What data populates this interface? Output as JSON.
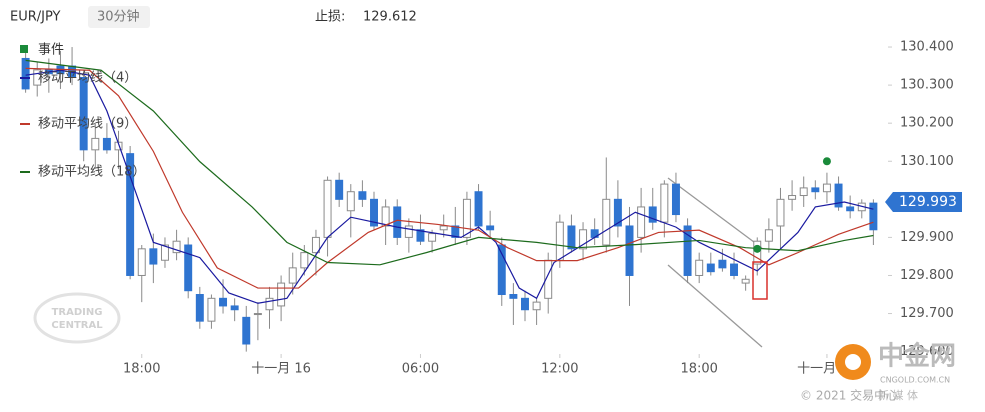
{
  "chart_data": {
    "type": "candlestick",
    "symbol": "EUR/JPY",
    "timeframe": "30分钟",
    "stop_loss": {
      "label": "止损:",
      "value": 129.612
    },
    "current_price": 129.993,
    "xlim": [
      -1,
      74
    ],
    "xticks": [
      {
        "value": 10,
        "label": "18:00"
      },
      {
        "value": 22,
        "label": "十一月 16"
      },
      {
        "value": 34,
        "label": "06:00"
      },
      {
        "value": 46,
        "label": "12:00"
      },
      {
        "value": 58,
        "label": "18:00"
      },
      {
        "value": 69,
        "label": "十一月 17"
      }
    ],
    "ylim": [
      129.599,
      130.45
    ],
    "yticks": [
      {
        "value": 130.4,
        "label": "130.400"
      },
      {
        "value": 130.3,
        "label": "130.300"
      },
      {
        "value": 130.2,
        "label": "130.200"
      },
      {
        "value": 130.1,
        "label": "130.100"
      },
      {
        "value": 129.9,
        "label": "129.900"
      },
      {
        "value": 129.8,
        "label": "129.800"
      },
      {
        "value": 129.7,
        "label": "129.700"
      },
      {
        "value": 129.6,
        "label": "129.600"
      }
    ],
    "up_color": "#ffffff",
    "down_color": "#2f74d0",
    "candles": {
      "open": [
        130.37,
        130.3,
        130.34,
        130.35,
        130.35,
        130.32,
        130.13,
        130.16,
        130.13,
        130.12,
        129.8,
        129.87,
        129.84,
        129.86,
        129.88,
        129.75,
        129.68,
        129.74,
        129.72,
        129.69,
        129.7,
        129.71,
        129.72,
        129.78,
        129.82,
        129.86,
        129.9,
        130.05,
        129.97,
        130.02,
        130.0,
        129.93,
        129.98,
        129.9,
        129.92,
        129.89,
        129.92,
        129.93,
        129.9,
        130.02,
        129.93,
        129.88,
        129.75,
        129.74,
        129.71,
        129.74,
        129.84,
        129.93,
        129.87,
        129.92,
        129.88,
        130.0,
        129.93,
        129.9,
        129.98,
        129.94,
        130.04,
        129.93,
        129.8,
        129.83,
        129.84,
        129.83,
        129.78,
        129.83,
        129.89,
        129.93,
        130.0,
        130.01,
        130.03,
        130.02,
        130.04,
        129.98,
        129.97,
        129.99
      ],
      "high": [
        130.4,
        130.36,
        130.37,
        130.39,
        130.4,
        130.34,
        130.2,
        130.2,
        130.18,
        130.14,
        129.88,
        129.91,
        129.9,
        129.92,
        129.9,
        129.77,
        129.75,
        129.79,
        129.74,
        129.72,
        129.73,
        129.77,
        129.8,
        129.86,
        129.88,
        129.92,
        130.06,
        130.07,
        130.04,
        130.05,
        130.02,
        130.0,
        130.0,
        129.95,
        129.96,
        129.92,
        129.96,
        129.98,
        130.02,
        130.04,
        129.97,
        129.9,
        129.78,
        129.76,
        129.74,
        129.86,
        129.96,
        129.96,
        129.94,
        129.95,
        130.11,
        130.05,
        129.98,
        130.03,
        130.03,
        130.05,
        130.07,
        129.95,
        129.86,
        129.86,
        129.87,
        129.86,
        129.8,
        129.9,
        129.95,
        130.03,
        130.05,
        130.06,
        130.05,
        130.07,
        130.06,
        130.01,
        130.0,
        130.0
      ],
      "low": [
        130.28,
        130.27,
        130.28,
        130.29,
        130.3,
        130.1,
        130.08,
        130.12,
        130.08,
        129.79,
        129.73,
        129.78,
        129.82,
        129.84,
        129.74,
        129.66,
        129.66,
        129.7,
        129.68,
        129.6,
        129.63,
        129.66,
        129.68,
        129.75,
        129.8,
        129.8,
        129.85,
        129.98,
        129.9,
        129.98,
        129.92,
        129.88,
        129.88,
        129.86,
        129.88,
        129.86,
        129.9,
        129.88,
        129.88,
        129.92,
        129.9,
        129.72,
        129.67,
        129.68,
        129.67,
        129.7,
        129.82,
        129.86,
        129.84,
        129.88,
        129.86,
        129.9,
        129.72,
        129.86,
        129.92,
        129.9,
        129.94,
        129.78,
        129.78,
        129.8,
        129.81,
        129.79,
        129.76,
        129.8,
        129.86,
        129.87,
        129.97,
        129.98,
        130.0,
        129.99,
        129.97,
        129.95,
        129.95,
        129.88
      ],
      "close": [
        130.29,
        130.34,
        130.33,
        130.33,
        130.32,
        130.13,
        130.16,
        130.13,
        130.15,
        129.8,
        129.87,
        129.83,
        129.88,
        129.89,
        129.76,
        129.68,
        129.74,
        129.72,
        129.71,
        129.62,
        129.7,
        129.74,
        129.78,
        129.82,
        129.86,
        129.9,
        130.05,
        130.0,
        130.02,
        130.0,
        129.93,
        129.98,
        129.9,
        129.93,
        129.89,
        129.91,
        129.93,
        129.9,
        130.0,
        129.93,
        129.92,
        129.75,
        129.74,
        129.71,
        129.73,
        129.84,
        129.94,
        129.87,
        129.92,
        129.9,
        130.0,
        129.93,
        129.8,
        129.98,
        129.94,
        130.04,
        129.96,
        129.8,
        129.84,
        129.81,
        129.82,
        129.8,
        129.79,
        129.89,
        129.92,
        130.0,
        130.01,
        130.03,
        130.02,
        130.04,
        129.98,
        129.97,
        129.99,
        129.92
      ]
    },
    "events": {
      "name": "事件",
      "color": "#1a8a3a",
      "x": [
        63,
        69
      ],
      "values": [
        129.87,
        130.1
      ]
    },
    "series": [
      {
        "name": "移动平均线（4）",
        "color": "#1a1aa0",
        "x": [
          0,
          3,
          5.5,
          7,
          9,
          11,
          15,
          17.5,
          20,
          22.5,
          26,
          28,
          32,
          37.5,
          39,
          40.5,
          42.5,
          44,
          45.5,
          49,
          52.5,
          56,
          58,
          63,
          66.5,
          68,
          70.5,
          73
        ],
        "values": [
          130.326,
          130.339,
          130.326,
          130.232,
          130.06,
          129.887,
          129.847,
          129.754,
          129.727,
          129.74,
          129.9,
          129.953,
          129.927,
          129.9,
          129.927,
          129.887,
          129.767,
          129.74,
          129.834,
          129.9,
          129.966,
          129.927,
          129.887,
          129.812,
          129.913,
          129.98,
          129.993,
          129.974
        ]
      },
      {
        "name": "移动平均线（9）",
        "color": "#c0392b",
        "x": [
          0,
          5.5,
          8,
          11,
          13.5,
          16.5,
          20,
          23.5,
          26,
          29.5,
          32,
          35.5,
          39,
          41.5,
          44,
          47.5,
          51,
          54.5,
          58,
          61.5,
          64,
          66.5,
          70,
          73
        ],
        "values": [
          130.344,
          130.339,
          130.272,
          130.126,
          129.966,
          129.82,
          129.767,
          129.767,
          129.834,
          129.913,
          129.945,
          129.934,
          129.919,
          129.873,
          129.839,
          129.839,
          129.873,
          129.913,
          129.919,
          129.873,
          129.828,
          129.86,
          129.908,
          129.94
        ]
      },
      {
        "name": "移动平均线（18）",
        "color": "#1d6b1d",
        "x": [
          0,
          6.5,
          11,
          15,
          19.5,
          22.5,
          26,
          30.5,
          34.5,
          39,
          44,
          47.5,
          52.5,
          58,
          62,
          66.5,
          70.5,
          73
        ],
        "values": [
          130.365,
          130.339,
          130.232,
          130.099,
          129.98,
          129.887,
          129.834,
          129.828,
          129.86,
          129.9,
          129.887,
          129.873,
          129.881,
          129.892,
          129.873,
          129.865,
          129.892,
          129.905
        ]
      }
    ],
    "watermarks": {
      "trading_central": [
        "TRADING",
        "CENTRAL"
      ],
      "site": "中金网",
      "site_url": "CNGOLD.COM.CN",
      "site_tag": "新 媒 体",
      "copyright": "© 2021 交易中心"
    }
  }
}
